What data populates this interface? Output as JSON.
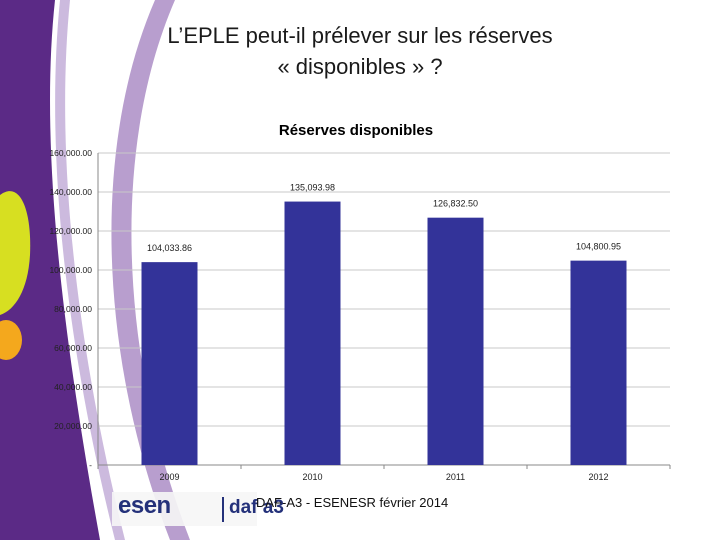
{
  "slide": {
    "title_line1": "L’EPLE peut-il prélever sur les réserves",
    "title_line2": "« disponibles » ?",
    "footer": "DAF-A3 - ESENESR février 2014",
    "logo_esen": "esen",
    "logo_daf": "daf a3"
  },
  "colors": {
    "bar": "#333399",
    "purple": "#5b2a86",
    "purple_light": "#7d4fa6",
    "green": "#d7df21",
    "orange": "#f4a81d",
    "grid": "#c8c8c8",
    "axis": "#888888"
  },
  "chart_data": {
    "type": "bar",
    "title": "Réserves disponibles",
    "categories": [
      "2009",
      "2010",
      "2011",
      "2012"
    ],
    "values": [
      104033.86,
      135093.98,
      126832.5,
      104800.95
    ],
    "value_labels": [
      "104,033.86",
      "135,093.98",
      "126,832.50",
      "104,800.95"
    ],
    "ylim": [
      0,
      160000
    ],
    "yticks": [
      0,
      20000,
      40000,
      60000,
      80000,
      100000,
      120000,
      140000,
      160000
    ],
    "ytick_labels": [
      "-",
      "20,000.00",
      "40,000.00",
      "60,000.00",
      "80,000.00",
      "100,000.00",
      "120,000.00",
      "140,000.00",
      "160,000.00"
    ],
    "xlabel": "",
    "ylabel": "",
    "grid": true,
    "legend": "none"
  }
}
